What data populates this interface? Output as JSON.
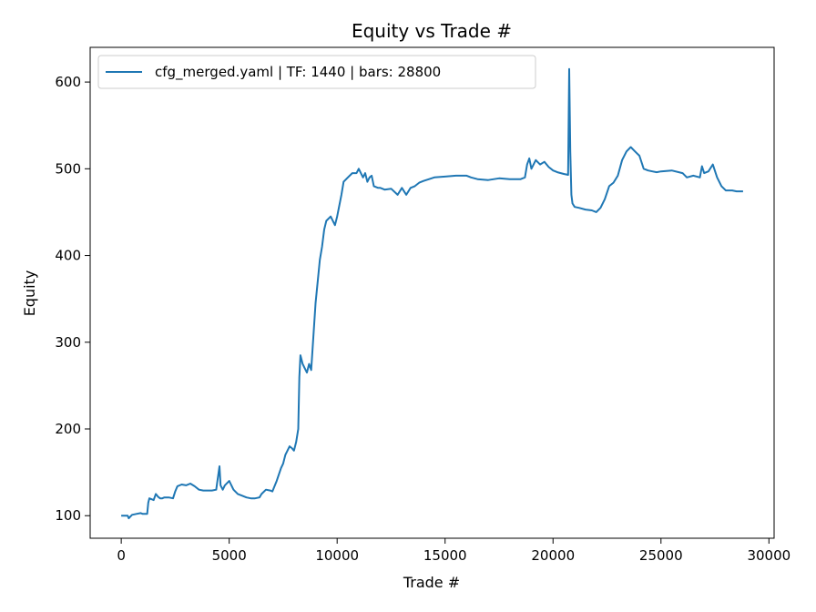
{
  "chart_data": {
    "type": "line",
    "title": "Equity vs Trade #",
    "xlabel": "Trade #",
    "ylabel": "Equity",
    "xlim": [
      -1440,
      30240
    ],
    "ylim": [
      74,
      640
    ],
    "xticks": [
      0,
      5000,
      10000,
      15000,
      20000,
      25000,
      30000
    ],
    "yticks": [
      100,
      200,
      300,
      400,
      500,
      600
    ],
    "grid": false,
    "legend_position": "upper-left",
    "series": [
      {
        "name": "cfg_merged.yaml | TF: 1440 | bars: 28800",
        "color": "#1f77b4",
        "x": [
          0,
          300,
          350,
          500,
          700,
          900,
          1000,
          1200,
          1250,
          1300,
          1500,
          1600,
          1700,
          1800,
          1900,
          2000,
          2200,
          2400,
          2500,
          2600,
          2800,
          3000,
          3200,
          3400,
          3600,
          3800,
          4000,
          4200,
          4400,
          4500,
          4550,
          4600,
          4700,
          4800,
          5000,
          5200,
          5400,
          5600,
          5800,
          6000,
          6200,
          6400,
          6500,
          6700,
          6900,
          7000,
          7200,
          7400,
          7500,
          7600,
          7800,
          7900,
          8000,
          8100,
          8200,
          8250,
          8300,
          8400,
          8500,
          8600,
          8700,
          8800,
          9000,
          9200,
          9300,
          9400,
          9500,
          9700,
          9900,
          10000,
          10200,
          10300,
          10500,
          10700,
          10900,
          11000,
          11200,
          11300,
          11400,
          11500,
          11600,
          11700,
          11900,
          12000,
          12200,
          12500,
          12800,
          13000,
          13200,
          13400,
          13600,
          13800,
          14000,
          14500,
          15000,
          15500,
          16000,
          16200,
          16500,
          17000,
          17500,
          18000,
          18500,
          18700,
          18800,
          18900,
          19000,
          19200,
          19400,
          19600,
          19800,
          20000,
          20200,
          20500,
          20700,
          20750,
          20800,
          20850,
          20900,
          21000,
          21200,
          21500,
          21800,
          22000,
          22200,
          22400,
          22600,
          22800,
          23000,
          23200,
          23400,
          23600,
          23800,
          24000,
          24200,
          24400,
          24600,
          24800,
          25000,
          25500,
          26000,
          26200,
          26500,
          26800,
          26900,
          27000,
          27200,
          27400,
          27600,
          27800,
          28000,
          28300,
          28500,
          28800
        ],
        "y": [
          100,
          100,
          97,
          101,
          102,
          103,
          102,
          102,
          115,
          120,
          118,
          125,
          122,
          120,
          120,
          121,
          121,
          120,
          128,
          134,
          136,
          135,
          137,
          134,
          130,
          129,
          129,
          129,
          130,
          148,
          157,
          135,
          130,
          135,
          140,
          130,
          125,
          123,
          121,
          120,
          120,
          121,
          125,
          130,
          129,
          128,
          140,
          155,
          160,
          170,
          180,
          178,
          175,
          185,
          200,
          260,
          285,
          275,
          270,
          265,
          275,
          268,
          345,
          395,
          410,
          430,
          440,
          445,
          435,
          445,
          470,
          485,
          490,
          495,
          495,
          500,
          490,
          495,
          485,
          490,
          492,
          480,
          478,
          478,
          476,
          477,
          470,
          478,
          470,
          478,
          480,
          484,
          486,
          490,
          491,
          492,
          492,
          490,
          488,
          487,
          489,
          488,
          488,
          490,
          505,
          512,
          500,
          510,
          505,
          508,
          502,
          498,
          496,
          494,
          493,
          615,
          520,
          470,
          460,
          456,
          455,
          453,
          452,
          450,
          455,
          465,
          480,
          484,
          492,
          510,
          520,
          525,
          520,
          515,
          500,
          498,
          497,
          496,
          497,
          498,
          495,
          490,
          492,
          490,
          503,
          495,
          497,
          505,
          490,
          480,
          475,
          475,
          474,
          474
        ]
      }
    ]
  }
}
